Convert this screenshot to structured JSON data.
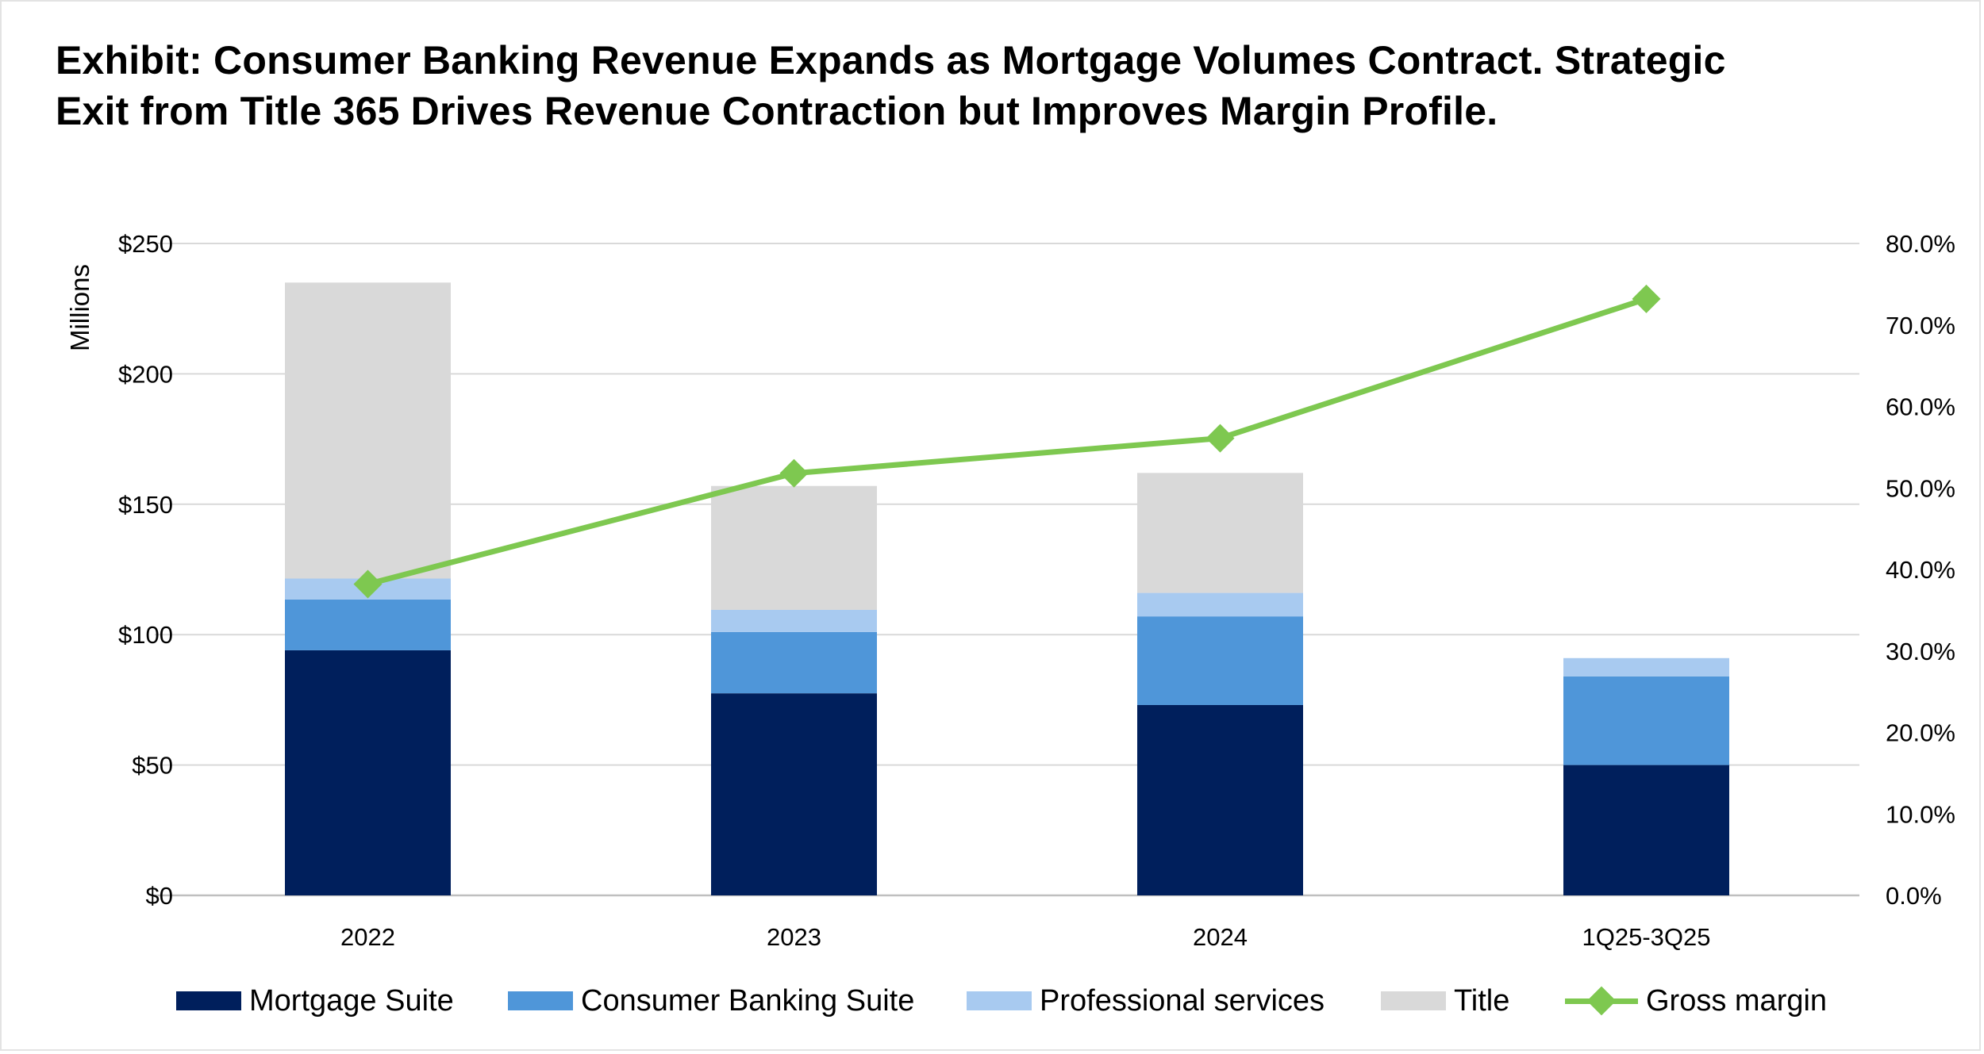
{
  "title_lines": [
    "Exhibit: Consumer Banking Revenue Expands as Mortgage Volumes Contract. Strategic",
    "Exit from Title 365 Drives Revenue Contraction but Improves Margin Profile."
  ],
  "chart_data": {
    "type": "bar",
    "stacked": true,
    "title": "Exhibit: Consumer Banking Revenue Expands as Mortgage Volumes Contract. Strategic Exit from Title 365 Drives Revenue Contraction but Improves Margin Profile.",
    "categories": [
      "2022",
      "2023",
      "2024",
      "1Q25-3Q25"
    ],
    "ylabel": "Millions",
    "ylim": [
      0,
      250
    ],
    "y_ticks": [
      0,
      50,
      100,
      150,
      200,
      250
    ],
    "y_tick_labels": [
      "$0",
      "$50",
      "$100",
      "$150",
      "$200",
      "$250"
    ],
    "y2lim": [
      0,
      80
    ],
    "y2_ticks": [
      0,
      10,
      20,
      30,
      40,
      50,
      60,
      70,
      80
    ],
    "y2_tick_labels": [
      "0.0%",
      "10.0%",
      "20.0%",
      "30.0%",
      "40.0%",
      "50.0%",
      "60.0%",
      "70.0%",
      "80.0%"
    ],
    "grid": true,
    "legend_position": "bottom",
    "series": [
      {
        "name": "Mortgage Suite",
        "type": "bar",
        "axis": "left",
        "color": "#001f5c",
        "values": [
          94,
          77.5,
          73,
          50
        ]
      },
      {
        "name": "Consumer Banking Suite",
        "type": "bar",
        "axis": "left",
        "color": "#4f96d9",
        "values": [
          19.5,
          23.5,
          34,
          34
        ]
      },
      {
        "name": "Professional services",
        "type": "bar",
        "axis": "left",
        "color": "#a8caf0",
        "values": [
          8,
          8.5,
          9,
          7
        ]
      },
      {
        "name": "Title",
        "type": "bar",
        "axis": "left",
        "color": "#d9d9d9",
        "values": [
          113.5,
          47.5,
          46,
          0
        ]
      },
      {
        "name": "Gross margin",
        "type": "line",
        "axis": "right",
        "marker": "diamond",
        "color": "#7ec850",
        "values": [
          38.2,
          51.8,
          56.1,
          73.2
        ]
      }
    ]
  }
}
